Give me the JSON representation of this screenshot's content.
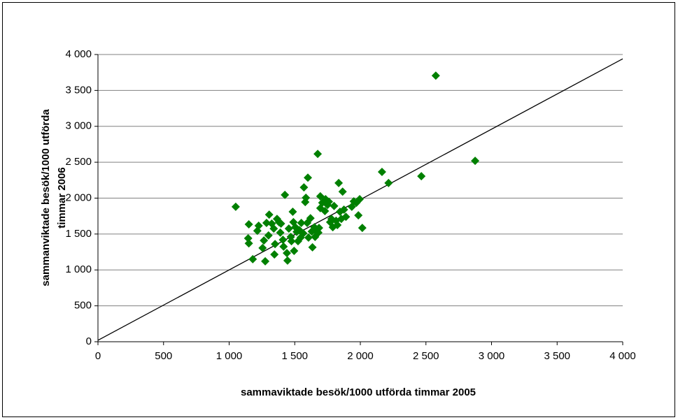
{
  "chart_data": {
    "type": "scatter",
    "x_label": "sammaviktade besök/1000 utförda timmar 2005",
    "y_label": [
      "sammanviktade besök/1000 utförda",
      "timmar 2006"
    ],
    "color": "#008000",
    "x": [
      1050,
      1150,
      1145,
      1150,
      1180,
      1225,
      1215,
      1255,
      1265,
      1275,
      1285,
      1305,
      1300,
      1325,
      1340,
      1350,
      1345,
      1365,
      1380,
      1390,
      1395,
      1415,
      1410,
      1425,
      1440,
      1445,
      1455,
      1470,
      1475,
      1485,
      1490,
      1495,
      1505,
      1515,
      1525,
      1535,
      1545,
      1550,
      1565,
      1570,
      1580,
      1585,
      1595,
      1600,
      1605,
      1620,
      1630,
      1635,
      1650,
      1655,
      1665,
      1675,
      1680,
      1685,
      1695,
      1695,
      1710,
      1730,
      1735,
      1750,
      1760,
      1770,
      1780,
      1790,
      1800,
      1815,
      1825,
      1835,
      1845,
      1855,
      1865,
      1875,
      1890,
      1935,
      1950,
      1970,
      1985,
      1995,
      2015,
      2165,
      2215,
      2465,
      2575,
      2875
    ],
    "values": [
      1880,
      1635,
      1440,
      1370,
      1150,
      1615,
      1545,
      1305,
      1410,
      1120,
      1655,
      1770,
      1480,
      1645,
      1575,
      1360,
      1215,
      1710,
      1665,
      1520,
      1645,
      1325,
      1420,
      2045,
      1235,
      1130,
      1575,
      1460,
      1400,
      1810,
      1665,
      1265,
      1595,
      1530,
      1400,
      1555,
      1450,
      1655,
      1510,
      2150,
      1945,
      2005,
      1655,
      2285,
      1450,
      1720,
      1535,
      1315,
      1595,
      1460,
      1535,
      2615,
      1520,
      1585,
      2025,
      1860,
      1935,
      1820,
      1985,
      1905,
      1950,
      1665,
      1710,
      1595,
      1890,
      1685,
      1625,
      2210,
      1810,
      1710,
      2090,
      1840,
      1740,
      1880,
      1955,
      1935,
      1760,
      1985,
      1585,
      2365,
      2210,
      2305,
      3705,
      2520
    ],
    "reference_line": {
      "x": [
        0,
        4000
      ],
      "y": [
        20,
        3940
      ],
      "color": "#000000"
    },
    "xlim": [
      0,
      4000
    ],
    "ylim": [
      0,
      4000
    ],
    "xticks": [
      0,
      500,
      {
        "value": 1000,
        "label": "1 000"
      },
      {
        "value": 1500,
        "label": "1 500"
      },
      {
        "value": 2000,
        "label": "2 000"
      },
      {
        "value": 2500,
        "label": "2 500"
      },
      {
        "value": 3000,
        "label": "3 000"
      },
      {
        "value": 3500,
        "label": "3 500"
      },
      {
        "value": 4000,
        "label": "4 000"
      }
    ],
    "yticks": [
      0,
      500,
      {
        "value": 1000,
        "label": "1 000"
      },
      {
        "value": 1500,
        "label": "1 500"
      },
      {
        "value": 2000,
        "label": "2 000"
      },
      {
        "value": 2500,
        "label": "2 500"
      },
      {
        "value": 3000,
        "label": "3 000"
      },
      {
        "value": 3500,
        "label": "3 500"
      },
      {
        "value": 4000,
        "label": "4 000"
      }
    ],
    "grid": true
  }
}
